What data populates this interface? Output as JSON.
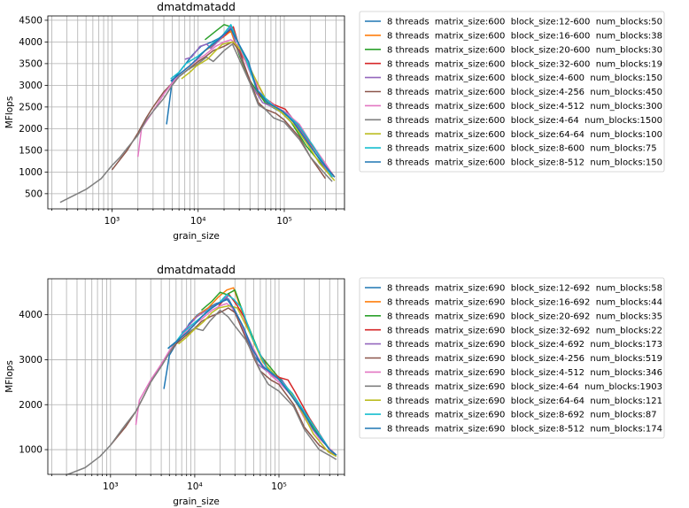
{
  "palette": [
    "#1f77b4",
    "#ff7f0e",
    "#2ca02c",
    "#d62728",
    "#9467bd",
    "#8c564b",
    "#e377c2",
    "#7f7f7f",
    "#bcbd22",
    "#17becf",
    "#1f77b4"
  ],
  "chart_data": [
    {
      "type": "line",
      "title": "dmatdmatadd",
      "xlabel": "grain_size",
      "ylabel": "MFlops",
      "xscale": "log",
      "xlim": [
        180,
        500000
      ],
      "ylim": [
        150,
        4600
      ],
      "xticks": [
        1000,
        10000,
        100000
      ],
      "xtick_labels": [
        "10³",
        "10⁴",
        "10⁵"
      ],
      "yticks": [
        500,
        1000,
        1500,
        2000,
        2500,
        3000,
        3500,
        4000,
        4500
      ],
      "ytick_labels": [
        "500",
        "1000",
        "1500",
        "2000",
        "2500",
        "3000",
        "3500",
        "4000",
        "4500"
      ],
      "grid": true,
      "legend_position": "outside-right",
      "series": [
        {
          "name": "8 threads  matrix_size:600  block_size:12-600  num_blocks:50",
          "x": [
            4300,
            5000,
            6000,
            7200,
            8600,
            10800,
            14400,
            18000,
            21600,
            25200,
            36000,
            50000,
            72000,
            108000,
            144000,
            216000,
            360000
          ],
          "y": [
            2100,
            3100,
            3300,
            3500,
            3700,
            3900,
            4000,
            4100,
            4200,
            4250,
            3600,
            2800,
            2500,
            2300,
            2100,
            1600,
            880
          ]
        },
        {
          "name": "8 threads  matrix_size:600  block_size:16-600  num_blocks:38",
          "x": [
            9600,
            12000,
            14400,
            19200,
            24000,
            28800,
            36000,
            48000,
            72000,
            96000,
            144000,
            216000,
            360000
          ],
          "y": [
            3600,
            3800,
            3900,
            4100,
            4250,
            3800,
            3300,
            2800,
            2550,
            2400,
            2100,
            1600,
            880
          ]
        },
        {
          "name": "8 threads  matrix_size:600  block_size:20-600  num_blocks:30",
          "x": [
            12000,
            16000,
            20000,
            24000,
            30000,
            40000,
            60000,
            90000,
            120000,
            180000,
            360000
          ],
          "y": [
            4050,
            4250,
            4400,
            4350,
            3700,
            3100,
            2600,
            2400,
            2150,
            1600,
            880
          ]
        },
        {
          "name": "8 threads  matrix_size:600  block_size:32-600  num_blocks:19",
          "x": [
            19200,
            25600,
            32000,
            38400,
            51200,
            76800,
            102400,
            153600,
            230400,
            384000
          ],
          "y": [
            4100,
            4350,
            3700,
            3450,
            2800,
            2550,
            2450,
            2000,
            1500,
            880
          ]
        },
        {
          "name": "8 threads  matrix_size:600  block_size:4-600  num_blocks:150",
          "x": [
            7000,
            8400,
            10500,
            12600,
            14000,
            16800,
            21000,
            24000,
            28000,
            42000,
            56000,
            84000,
            112000,
            168000,
            350000
          ],
          "y": [
            3600,
            3650,
            3900,
            3950,
            3850,
            4000,
            4200,
            4350,
            3900,
            3000,
            2600,
            2450,
            2350,
            1850,
            880
          ]
        },
        {
          "name": "8 threads  matrix_size:600  block_size:4-256  num_blocks:450",
          "x": [
            1000,
            1500,
            2000,
            2500,
            3000,
            4000,
            5000,
            6000,
            8000,
            10000,
            12000,
            15000,
            20000,
            25000,
            30000,
            40000,
            50000,
            60000,
            80000,
            100000,
            150000,
            200000,
            300000
          ],
          "y": [
            1050,
            1500,
            1900,
            2250,
            2500,
            2850,
            3050,
            3200,
            3400,
            3550,
            3650,
            3800,
            3900,
            4000,
            3800,
            3100,
            2600,
            2450,
            2350,
            2200,
            1800,
            1350,
            850
          ]
        },
        {
          "name": "8 threads  matrix_size:600  block_size:4-512  num_blocks:300",
          "x": [
            2000,
            2200,
            3000,
            4000,
            5000,
            6000,
            8000,
            10000,
            12000,
            16000,
            20000,
            24000,
            30000,
            40000,
            60000,
            80000,
            100000,
            150000,
            200000,
            300000,
            360000
          ],
          "y": [
            1350,
            2000,
            2400,
            2800,
            3050,
            3250,
            3450,
            3600,
            3700,
            3900,
            4000,
            4050,
            3900,
            3300,
            2700,
            2500,
            2400,
            2100,
            1700,
            1200,
            950
          ]
        },
        {
          "name": "8 threads  matrix_size:600  block_size:4-64  num_blocks:1500",
          "x": [
            250,
            500,
            750,
            1000,
            1250,
            1500,
            2000,
            2500,
            3000,
            4000,
            5000,
            6000,
            7500,
            10000,
            12500,
            15000,
            20000,
            25000,
            30000,
            40000,
            50000,
            60000,
            75000,
            100000,
            150000,
            200000,
            300000,
            360000
          ],
          "y": [
            300,
            600,
            850,
            1150,
            1350,
            1550,
            1850,
            2200,
            2400,
            2700,
            3000,
            3200,
            3350,
            3500,
            3650,
            3550,
            3800,
            3950,
            3600,
            3050,
            2550,
            2450,
            2250,
            2150,
            1750,
            1350,
            950,
            780
          ]
        },
        {
          "name": "8 threads  matrix_size:600  block_size:64-64  num_blocks:100",
          "x": [
            6400,
            8000,
            9600,
            12800,
            16000,
            19200,
            25600,
            32000,
            44800,
            64000,
            96000,
            128000,
            192000,
            256000,
            384000
          ],
          "y": [
            3150,
            3300,
            3450,
            3600,
            3800,
            3950,
            4000,
            3800,
            3200,
            2600,
            2350,
            2100,
            1600,
            1200,
            800
          ]
        },
        {
          "name": "8 threads  matrix_size:600  block_size:8-600  num_blocks:75",
          "x": [
            4800,
            6000,
            7200,
            9600,
            12000,
            14400,
            19200,
            24000,
            28800,
            36000,
            48000,
            72000,
            96000,
            144000,
            216000,
            360000
          ],
          "y": [
            3150,
            3300,
            3500,
            3650,
            3800,
            3950,
            4150,
            4400,
            4000,
            3600,
            2900,
            2550,
            2400,
            2100,
            1600,
            880
          ]
        },
        {
          "name": "8 threads  matrix_size:600  block_size:8-512  num_blocks:150",
          "x": [
            4800,
            6000,
            8000,
            9600,
            12000,
            16000,
            19200,
            24000,
            28800,
            38400,
            48000,
            64000,
            96000,
            128000,
            192000,
            256000,
            384000
          ],
          "y": [
            3100,
            3250,
            3450,
            3600,
            3800,
            4000,
            4150,
            4300,
            4000,
            3550,
            2900,
            2600,
            2400,
            2150,
            1650,
            1300,
            880
          ]
        }
      ]
    },
    {
      "type": "line",
      "title": "dmatdmatadd",
      "xlabel": "grain_size",
      "ylabel": "MFlops",
      "xscale": "log",
      "xlim": [
        180,
        600000
      ],
      "ylim": [
        450,
        4800
      ],
      "xticks": [
        1000,
        10000,
        100000
      ],
      "xtick_labels": [
        "10³",
        "10⁴",
        "10⁵"
      ],
      "yticks": [
        1000,
        2000,
        3000,
        4000
      ],
      "ytick_labels": [
        "1000",
        "2000",
        "3000",
        "4000"
      ],
      "grid": true,
      "legend_position": "outside-right",
      "series": [
        {
          "name": "8 threads  matrix_size:690  block_size:12-692  num_blocks:58",
          "x": [
            4300,
            5000,
            6000,
            7200,
            8600,
            10800,
            14400,
            18000,
            21600,
            25200,
            36000,
            50000,
            72000,
            108000,
            144000,
            216000,
            400000,
            480000
          ],
          "y": [
            2350,
            3100,
            3350,
            3550,
            3800,
            4000,
            4150,
            4250,
            4300,
            4350,
            3800,
            3100,
            2750,
            2550,
            2200,
            1700,
            1000,
            880
          ]
        },
        {
          "name": "8 threads  matrix_size:690  block_size:16-692  num_blocks:44",
          "x": [
            9600,
            12000,
            14400,
            19200,
            24000,
            28800,
            36000,
            48000,
            72000,
            96000,
            144000,
            216000,
            400000,
            480000
          ],
          "y": [
            3900,
            4050,
            4150,
            4400,
            4550,
            4600,
            4100,
            3500,
            2800,
            2600,
            2250,
            1700,
            1000,
            880
          ]
        },
        {
          "name": "8 threads  matrix_size:690  block_size:20-692  num_blocks:35",
          "x": [
            12000,
            16000,
            20000,
            24000,
            30000,
            40000,
            60000,
            90000,
            120000,
            180000,
            400000,
            480000
          ],
          "y": [
            4100,
            4300,
            4500,
            4450,
            4550,
            3900,
            3100,
            2700,
            2400,
            1900,
            1000,
            880
          ]
        },
        {
          "name": "8 threads  matrix_size:690  block_size:32-692  num_blocks:22",
          "x": [
            19200,
            25600,
            32000,
            38400,
            51200,
            76800,
            102400,
            128000,
            153600,
            230400,
            384000,
            480000
          ],
          "y": [
            4200,
            4450,
            4200,
            3950,
            3350,
            2750,
            2600,
            2550,
            2300,
            1700,
            1050,
            880
          ]
        },
        {
          "name": "8 threads  matrix_size:690  block_size:4-692  num_blocks:173",
          "x": [
            7000,
            8400,
            10500,
            12600,
            14000,
            16800,
            21000,
            24000,
            28000,
            42000,
            56000,
            84000,
            112000,
            168000,
            400000,
            480000
          ],
          "y": [
            3600,
            3750,
            3950,
            4050,
            4100,
            4200,
            4300,
            4400,
            4150,
            3500,
            2900,
            2650,
            2500,
            2050,
            1000,
            880
          ]
        },
        {
          "name": "8 threads  matrix_size:690  block_size:4-256  num_blocks:519",
          "x": [
            1000,
            1500,
            2000,
            2500,
            3000,
            4000,
            5000,
            6000,
            8000,
            10000,
            12000,
            15000,
            20000,
            25000,
            30000,
            40000,
            50000,
            60000,
            80000,
            100000,
            150000,
            200000,
            300000,
            480000
          ],
          "y": [
            1100,
            1500,
            1850,
            2200,
            2500,
            2900,
            3150,
            3350,
            3550,
            3700,
            3850,
            3950,
            4050,
            4150,
            4050,
            3500,
            3050,
            2750,
            2550,
            2450,
            2000,
            1500,
            1100,
            850
          ]
        },
        {
          "name": "8 threads  matrix_size:690  block_size:4-512  num_blocks:346",
          "x": [
            2000,
            2200,
            3000,
            4000,
            5000,
            6000,
            8000,
            10000,
            12000,
            16000,
            20000,
            24000,
            30000,
            40000,
            60000,
            80000,
            100000,
            150000,
            200000,
            300000,
            480000
          ],
          "y": [
            1550,
            2100,
            2550,
            2900,
            3200,
            3400,
            3650,
            3800,
            3900,
            4100,
            4200,
            4250,
            4100,
            3600,
            2950,
            2650,
            2500,
            2150,
            1700,
            1250,
            880
          ]
        },
        {
          "name": "8 threads  matrix_size:690  block_size:4-64  num_blocks:1903",
          "x": [
            250,
            500,
            750,
            1000,
            1250,
            1500,
            2000,
            2500,
            3000,
            4000,
            5000,
            6000,
            7500,
            10000,
            12500,
            15000,
            20000,
            25000,
            30000,
            40000,
            50000,
            60000,
            75000,
            100000,
            150000,
            200000,
            300000,
            400000,
            480000
          ],
          "y": [
            380,
            600,
            850,
            1100,
            1350,
            1550,
            1850,
            2200,
            2500,
            2850,
            3150,
            3400,
            3550,
            3700,
            3650,
            3850,
            4100,
            3950,
            3750,
            3450,
            3100,
            2750,
            2450,
            2300,
            1950,
            1450,
            1000,
            870,
            780
          ]
        },
        {
          "name": "8 threads  matrix_size:690  block_size:64-64  num_blocks:121",
          "x": [
            6400,
            8000,
            9600,
            12800,
            16000,
            19200,
            25600,
            32000,
            44800,
            64000,
            96000,
            128000,
            192000,
            256000,
            384000,
            480000
          ],
          "y": [
            3350,
            3500,
            3650,
            3850,
            4050,
            4150,
            4200,
            4150,
            3600,
            2950,
            2600,
            2350,
            1800,
            1350,
            950,
            850
          ]
        },
        {
          "name": "8 threads  matrix_size:690  block_size:8-692  num_blocks:87",
          "x": [
            4800,
            6000,
            7200,
            9600,
            12000,
            14400,
            19200,
            24000,
            28800,
            36000,
            48000,
            72000,
            96000,
            144000,
            216000,
            400000,
            480000
          ],
          "y": [
            3250,
            3400,
            3600,
            3800,
            3950,
            4100,
            4250,
            4450,
            4350,
            4150,
            3500,
            2800,
            2600,
            2250,
            1750,
            1000,
            880
          ]
        },
        {
          "name": "8 threads  matrix_size:690  block_size:8-512  num_blocks:174",
          "x": [
            4800,
            6000,
            8000,
            9600,
            12000,
            16000,
            19200,
            24000,
            28800,
            38400,
            48000,
            64000,
            96000,
            128000,
            192000,
            256000,
            400000,
            480000
          ],
          "y": [
            3250,
            3400,
            3600,
            3750,
            3950,
            4150,
            4250,
            4350,
            4150,
            3700,
            3250,
            2850,
            2600,
            2300,
            1850,
            1450,
            1000,
            880
          ]
        }
      ]
    }
  ]
}
